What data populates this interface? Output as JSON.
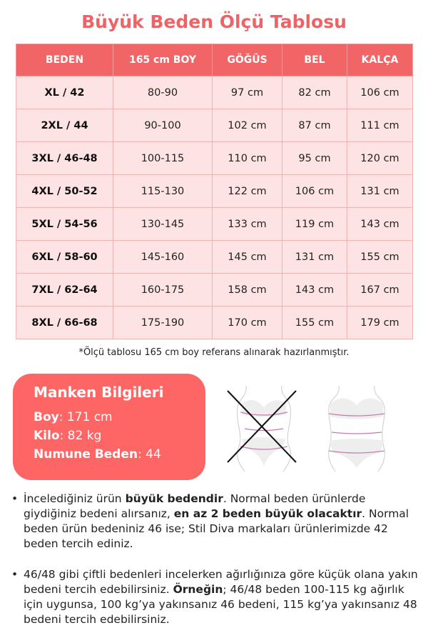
{
  "title": "Büyük Beden Ölçü Tablosu",
  "table": {
    "headers": [
      "BEDEN",
      "165 cm BOY",
      "GÖĞÜS",
      "BEL",
      "KALÇA"
    ],
    "rows": [
      [
        "XL / 42",
        "80-90",
        "97 cm",
        "82 cm",
        "106 cm"
      ],
      [
        "2XL / 44",
        "90-100",
        "102 cm",
        "87 cm",
        "111 cm"
      ],
      [
        "3XL / 46-48",
        "100-115",
        "110 cm",
        "95 cm",
        "120 cm"
      ],
      [
        "4XL / 50-52",
        "115-130",
        "122 cm",
        "106 cm",
        "131 cm"
      ],
      [
        "5XL / 54-56",
        "130-145",
        "133 cm",
        "119 cm",
        "143 cm"
      ],
      [
        "6XL / 58-60",
        "145-160",
        "145 cm",
        "131 cm",
        "155 cm"
      ],
      [
        "7XL / 62-64",
        "160-175",
        "158 cm",
        "143 cm",
        "167 cm"
      ],
      [
        "8XL / 66-68",
        "175-190",
        "170 cm",
        "155 cm",
        "179 cm"
      ]
    ]
  },
  "note": "*Ölçü tablosu 165 cm boy referans alınarak hazırlanmıştır.",
  "model": {
    "title": "Manken Bilgileri",
    "height_label": "Boy",
    "height_value": ": 171 cm",
    "weight_label": "Kilo",
    "weight_value": ": 82 kg",
    "size_label": "Numune Beden",
    "size_value": ": 44"
  },
  "figures": [
    {
      "icon": "body-wrong-measure-icon"
    },
    {
      "icon": "body-correct-measure-icon"
    }
  ],
  "bullets": [
    {
      "parts": [
        "İncelediğiniz ürün ",
        "büyük bedendir",
        ". Normal beden ürünlerde giydiğiniz bedeni alırsanız, ",
        "en az 2 beden büyük olacaktır",
        ". Normal beden ürün bedeniniz 46 ise; Stil Diva markaları ürünlerimizde 42 beden tercih ediniz."
      ]
    },
    {
      "parts": [
        "46/48 gibi çiftli bedenleri incelerken ağırlığınıza göre küçük olana yakın bedeni tercih edebilirsiniz. ",
        "Örneğin",
        "; 46/48 beden 100-115 kg ağırlık için uygunsa, 100 kg’ya yakınsanız 46 bedeni, 115 kg’ya yakınsanız 48 bedeni tercih edebilirsiniz."
      ]
    }
  ],
  "colors": {
    "accent": "#f26567",
    "row_bg": "#fde3e3"
  }
}
